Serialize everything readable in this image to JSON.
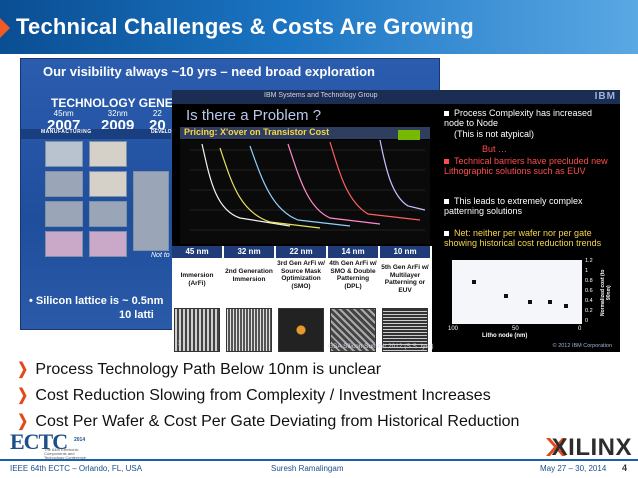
{
  "title": "Technical Challenges & Costs Are Growing",
  "back_slide": {
    "heading": "Our visibility always ~10 yrs – need broad exploration",
    "tech_generation_label": "TECHNOLOGY GENERA",
    "nodes": [
      {
        "nm": "45nm",
        "year": "2007"
      },
      {
        "nm": "32nm",
        "year": "2009"
      },
      {
        "nm": "22",
        "year": "20"
      }
    ],
    "manufacturing_label": "MANUFACTURING",
    "development_label": "DEVELO",
    "not_label": "Not to",
    "silicon_line1": "• Silicon lattice is ~ 0.5nm",
    "silicon_line2": "10 latti"
  },
  "front_slide": {
    "header_group": "IBM Systems and Technology Group",
    "logo": "IBM",
    "question": "Is there a Problem ?",
    "pricing": "Pricing: X'over on Transistor Cost",
    "table": {
      "columns": [
        "45 nm",
        "32 nm",
        "22 nm",
        "14 nm",
        "10 nm"
      ],
      "cells": [
        "Immersion (ArFi)",
        "2nd Generation Immersion",
        "3rd Gen ArFi w/ Source Mask Optimization (SMO)",
        "4th Gen ArFi w/ SMO & Double Patterning (DPL)",
        "5th Gen ArFi w/ Multilayer Patterning or EUV"
      ]
    },
    "summit": "GSA Silicon Summit   2012  (S.S. Iyer)",
    "copyright": "© 2012 IBM Corporation",
    "page": "3",
    "bullets": [
      {
        "text": "Process Complexity has increased node to Node",
        "style": "white"
      },
      {
        "text": "(This is not atypical)",
        "style": "indent"
      },
      {
        "text": "But …",
        "style": "indent-red"
      },
      {
        "text": "Technical barriers have precluded new Lithographic solutions such as EUV",
        "style": "red"
      },
      {
        "text": "This leads to extremely complex patterning solutions",
        "style": "white"
      },
      {
        "text": "Net: neither per wafer nor per gate showing historical cost reduction trends",
        "style": "yellow"
      }
    ],
    "mini_chart": {
      "x_ticks": [
        "100",
        "50",
        "0"
      ],
      "xlabel": "Litho node (nm)",
      "y_ticks": [
        "1.2",
        "1",
        "0.8",
        "0.6",
        "0.4",
        "0.2",
        "0"
      ],
      "ylabel": "Normalized cost (to 90nm)"
    }
  },
  "main_bullets": [
    "Process Technology Path Below 10nm is unclear",
    "Cost Reduction Slowing from Complexity / Investment  Increases",
    "Cost Per Wafer & Cost Per Gate Deviating from Historical Reduction"
  ],
  "footer": {
    "conference": "IEEE 64th ECTC – Orlando, FL, USA",
    "speaker": "Suresh Ramalingam",
    "date": "May 27 – 30, 2014",
    "page": "4",
    "ectc_logo": "ECTC",
    "ectc_year": "2014",
    "ectc_sub": "The 64th Electronic Components and Technology Conference",
    "brand": "XILINX"
  },
  "colors": {
    "title_bar": "#1b74c2",
    "bullet_chevron": "#e24a1d",
    "footer_text": "#1b4f8a"
  }
}
